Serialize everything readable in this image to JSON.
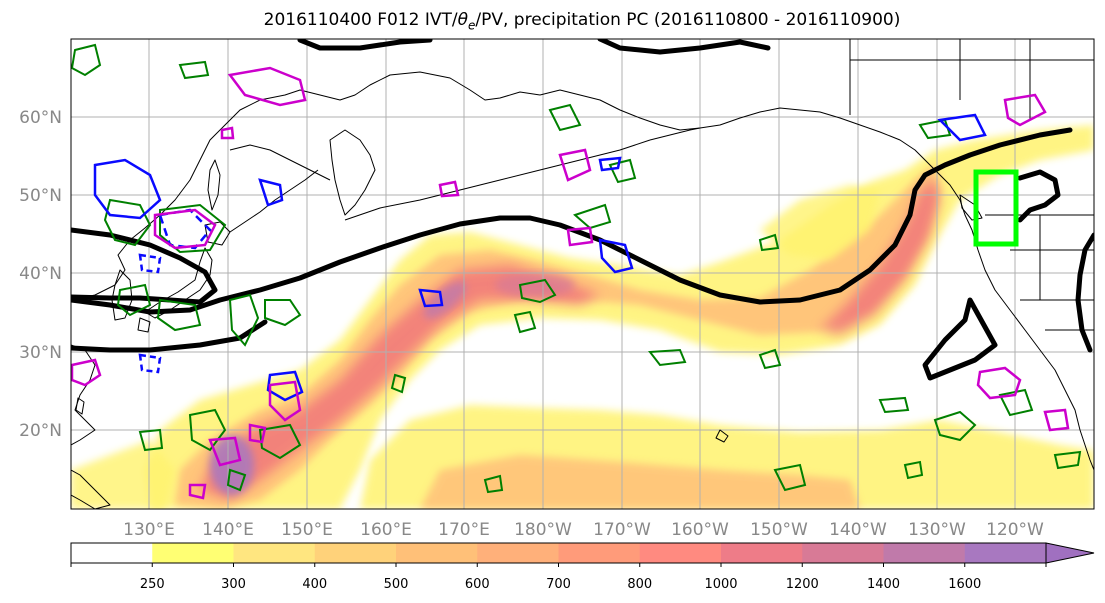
{
  "title": {
    "prefix": "2016110400 F012 IVT/",
    "theta": "θ",
    "theta_sub": "e",
    "suffix": "/PV, precipitation PC (2016110800 - 2016110900)"
  },
  "lat_labels": [
    "60°N",
    "50°N",
    "40°N",
    "30°N",
    "20°N"
  ],
  "lon_labels": [
    "130°E",
    "140°E",
    "150°E",
    "160°E",
    "170°E",
    "180°W",
    "170°W",
    "160°W",
    "150°W",
    "140°W",
    "130°W",
    "120°W"
  ],
  "map_extent": {
    "lon_min": 120,
    "lon_max": 250,
    "lat_min": 10,
    "lat_max": 70
  },
  "colorbar": {
    "ticks": [
      "250",
      "300",
      "400",
      "500",
      "600",
      "700",
      "800",
      "1000",
      "1200",
      "1400",
      "1600"
    ],
    "colors": [
      "#ffffff",
      "#ffff73",
      "#ffe680",
      "#ffd27a",
      "#ffc078",
      "#ffb07a",
      "#ff9b7a",
      "#ff8a80",
      "#ee7c88",
      "#d87a96",
      "#c07aaa",
      "#a878c0"
    ]
  },
  "colors": {
    "ivt_fill_low": "#fff36e",
    "ivt_fill_mid": "#ffbd79",
    "ivt_fill_high": "#f0727a",
    "ivt_fill_peak": "#a878c0",
    "theta_e_contour": "#000000",
    "pv_positive": "#0a0aff",
    "pv_negative": "#ff00ff",
    "precip_contour": "#008000",
    "target_box": "#00ff00",
    "coastline": "#000000",
    "gridline": "#b0b0b0"
  }
}
